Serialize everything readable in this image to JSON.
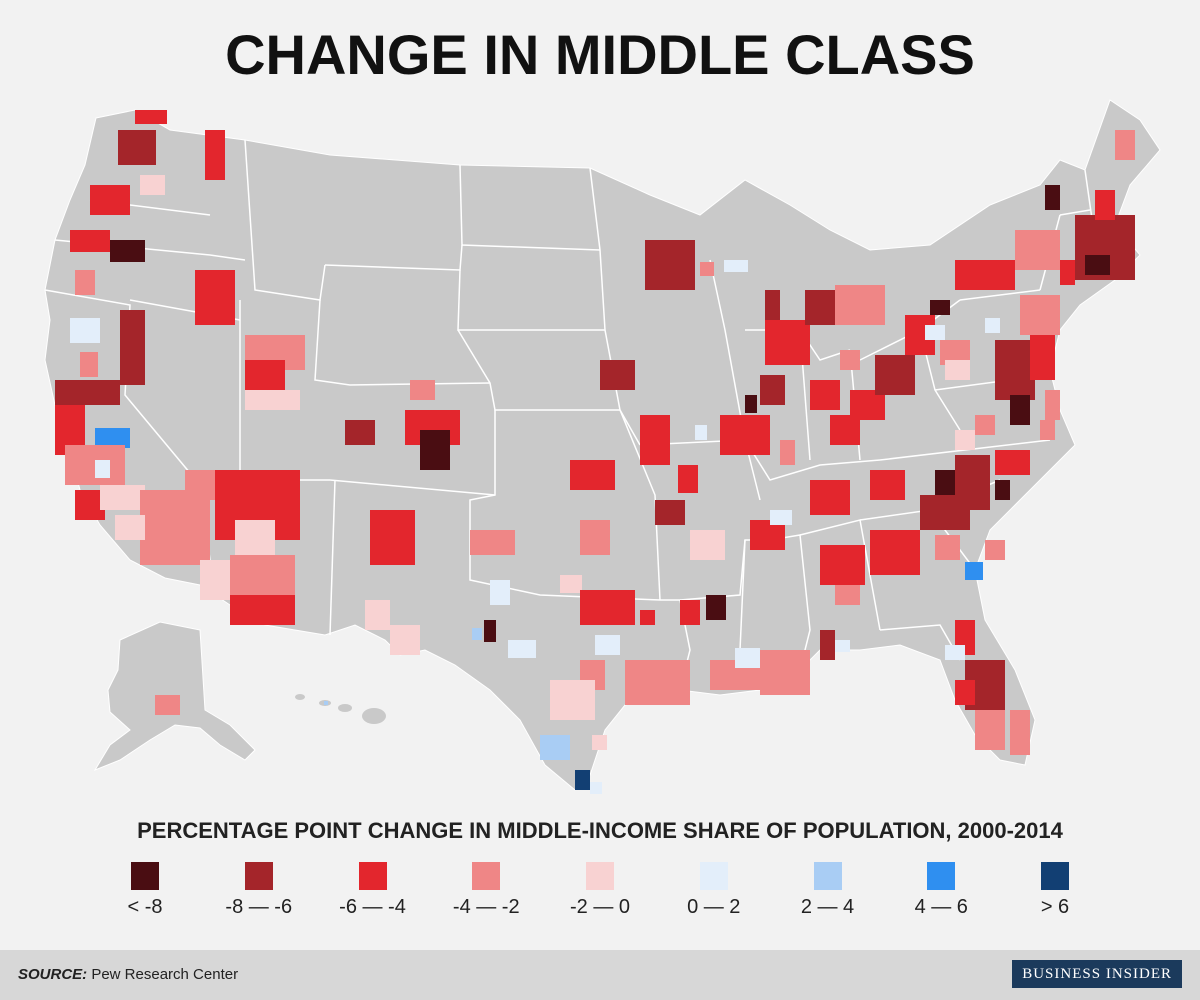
{
  "title": "CHANGE IN MIDDLE CLASS",
  "legend": {
    "title": "PERCENTAGE POINT CHANGE IN MIDDLE-INCOME SHARE OF POPULATION, 2000-2014",
    "items": [
      {
        "label": "< -8",
        "color": "#4a0d12"
      },
      {
        "label": "-8 — -6",
        "color": "#a4252a"
      },
      {
        "label": "-6 — -4",
        "color": "#e3262d"
      },
      {
        "label": "-4 — -2",
        "color": "#ef8686"
      },
      {
        "label": "-2 — 0",
        "color": "#f8d2d2"
      },
      {
        "label": "0 — 2",
        "color": "#e3eefa"
      },
      {
        "label": "2 — 4",
        "color": "#a9cdf4"
      },
      {
        "label": "4 — 6",
        "color": "#2f8ff0"
      },
      {
        "label": "> 6",
        "color": "#123f73"
      }
    ]
  },
  "footer": {
    "source_label": "SOURCE:",
    "source_text": " Pew Research Center",
    "brand": "BUSINESS INSIDER"
  },
  "colors": {
    "land": "#c9c9c9",
    "background": "#f2f2f2",
    "border": "#ffffff"
  }
}
